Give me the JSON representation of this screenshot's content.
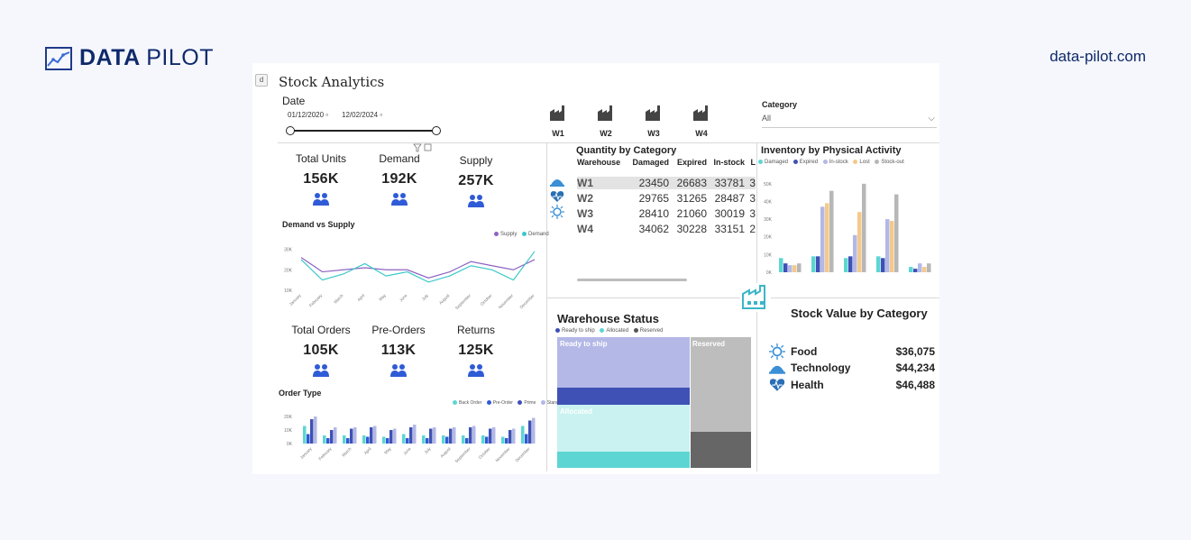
{
  "brand": {
    "name_bold": "DATA",
    "name_light": "PILOT",
    "site": "data-pilot.com"
  },
  "dashboard": {
    "badge": "d",
    "title": "Stock Analytics",
    "date": {
      "label": "Date",
      "start": "01/12/2020",
      "end": "12/02/2024"
    },
    "warehouses": [
      "W1",
      "W2",
      "W3",
      "W4"
    ],
    "category": {
      "label": "Category",
      "value": "All"
    },
    "kpis_top": [
      {
        "label": "Total Units",
        "value": "156K"
      },
      {
        "label": "Demand",
        "value": "192K"
      },
      {
        "label": "Supply",
        "value": "257K"
      }
    ],
    "kpis_bottom": [
      {
        "label": "Total Orders",
        "value": "105K"
      },
      {
        "label": "Pre-Orders",
        "value": "113K"
      },
      {
        "label": "Returns",
        "value": "125K"
      }
    ],
    "quantity_table": {
      "title": "Quantity by Category",
      "headers": [
        "Warehouse",
        "Damaged",
        "Expired",
        "In-stock",
        "L"
      ],
      "rows": [
        [
          "W1",
          "23450",
          "26683",
          "33781",
          "3"
        ],
        [
          "W2",
          "29765",
          "31265",
          "28487",
          "3"
        ],
        [
          "W3",
          "28410",
          "21060",
          "30019",
          "3"
        ],
        [
          "W4",
          "34062",
          "30228",
          "33151",
          "2"
        ]
      ]
    },
    "stock_value": {
      "title": "Stock Value by Category",
      "items": [
        {
          "name": "Food",
          "value": "$36,075",
          "icon": "food-icon"
        },
        {
          "name": "Technology",
          "value": "$44,234",
          "icon": "technology-icon"
        },
        {
          "name": "Health",
          "value": "$46,488",
          "icon": "health-icon"
        }
      ]
    },
    "colors": {
      "damaged": "#5dd6d3",
      "expired": "#3f51b5",
      "instock": "#b3b8e6",
      "lost": "#f5c98a",
      "stockout": "#b7b7b7",
      "accent_blue": "#2f5bd6",
      "supply": "#8e63c4",
      "demand": "#3cc8c8"
    }
  },
  "chart_data": [
    {
      "type": "line",
      "title": "Demand vs Supply",
      "categories": [
        "January",
        "February",
        "March",
        "April",
        "May",
        "June",
        "July",
        "August",
        "September",
        "October",
        "November",
        "December"
      ],
      "series": [
        {
          "name": "Supply",
          "values": [
            26,
            19,
            20,
            21,
            20,
            20,
            16,
            19,
            24,
            22,
            20,
            25
          ]
        },
        {
          "name": "Demand",
          "values": [
            25,
            15,
            18,
            23,
            17,
            19,
            14,
            17,
            22,
            20,
            15,
            29
          ]
        }
      ],
      "yticks": [
        "10K",
        "20K",
        "30K"
      ],
      "ylim": [
        10,
        32
      ],
      "legend": "top-right"
    },
    {
      "type": "bar",
      "title": "Order Type",
      "categories": [
        "January",
        "February",
        "March",
        "April",
        "May",
        "June",
        "July",
        "August",
        "September",
        "October",
        "November",
        "December"
      ],
      "series": [
        {
          "name": "Back Order",
          "values": [
            13,
            6,
            6,
            6,
            5,
            7,
            6,
            6,
            6,
            6,
            5,
            13
          ]
        },
        {
          "name": "Pre-Order",
          "values": [
            7,
            4,
            4,
            5,
            4,
            4,
            4,
            5,
            4,
            5,
            4,
            7
          ]
        },
        {
          "name": "Prime",
          "values": [
            18,
            10,
            11,
            12,
            10,
            12,
            11,
            11,
            12,
            11,
            10,
            17
          ]
        },
        {
          "name": "Standard",
          "values": [
            20,
            12,
            12,
            13,
            11,
            14,
            12,
            12,
            13,
            12,
            11,
            19
          ]
        }
      ],
      "yticks": [
        "0K",
        "10K",
        "20K"
      ],
      "ylim": [
        0,
        24
      ],
      "legend": "top-right"
    },
    {
      "type": "bar",
      "title": "Inventory by Physical Activity",
      "series": [
        {
          "name": "Damaged",
          "values": [
            8,
            9,
            8,
            9,
            3
          ]
        },
        {
          "name": "Expired",
          "values": [
            5,
            9,
            9,
            8,
            2
          ]
        },
        {
          "name": "In-stock",
          "values": [
            4,
            37,
            21,
            30,
            5
          ]
        },
        {
          "name": "Lost",
          "values": [
            4,
            39,
            34,
            29,
            3
          ]
        },
        {
          "name": "Stock-out",
          "values": [
            5,
            46,
            50,
            44,
            5
          ]
        }
      ],
      "yticks": [
        "0K",
        "10K",
        "20K",
        "30K",
        "40K",
        "50K"
      ],
      "ylim": [
        0,
        55
      ],
      "legend": "top-left"
    },
    {
      "type": "heatmap",
      "title": "Warehouse Status",
      "series": [
        {
          "name": "Ready to ship",
          "values": [
            35
          ]
        },
        {
          "name": "Allocated",
          "values": [
            33
          ]
        },
        {
          "name": "Reserved",
          "values": [
            32
          ]
        }
      ],
      "legend": "top-left"
    }
  ]
}
